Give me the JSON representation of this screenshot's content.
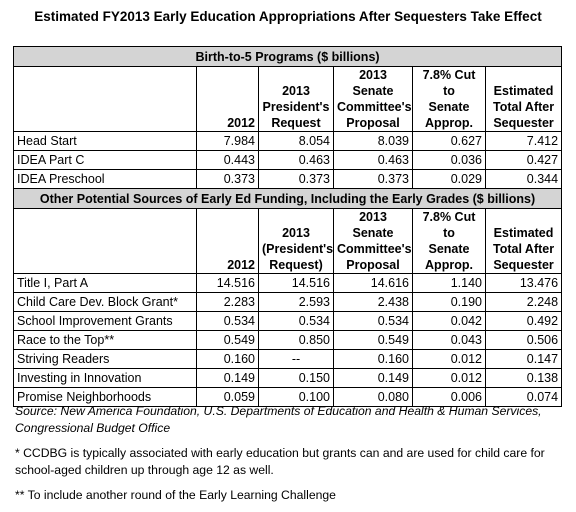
{
  "title": "Estimated FY2013 Early Education Appropriations After Sequesters Take Effect",
  "section1": {
    "header": "Birth-to-5 Programs ($ billions)",
    "columns": [
      "2012",
      "2013 President's Request",
      "2013 Senate Committee's Proposal",
      "7.8% Cut to Senate Approp.",
      "Estimated Total After Sequester"
    ],
    "col_lines": [
      [
        "2012"
      ],
      [
        "2013",
        "President's",
        "Request"
      ],
      [
        "2013 Senate",
        "Committee's",
        "Proposal"
      ],
      [
        "7.8% Cut to",
        "Senate",
        "Approp."
      ],
      [
        "Estimated",
        "Total After",
        "Sequester"
      ]
    ],
    "rows": [
      {
        "name": "Head Start",
        "v": [
          "7.984",
          "8.054",
          "8.039",
          "0.627",
          "7.412"
        ]
      },
      {
        "name": "IDEA Part C",
        "v": [
          "0.443",
          "0.463",
          "0.463",
          "0.036",
          "0.427"
        ]
      },
      {
        "name": "IDEA Preschool",
        "v": [
          "0.373",
          "0.373",
          "0.373",
          "0.029",
          "0.344"
        ]
      }
    ]
  },
  "section2": {
    "header": "Other Potential Sources of Early Ed Funding, Including the Early Grades ($ billions)",
    "col_lines": [
      [
        "2012"
      ],
      [
        "2013",
        "(President's",
        "Request)"
      ],
      [
        "2013 Senate",
        "Committee's",
        "Proposal"
      ],
      [
        "7.8% Cut to",
        "Senate",
        "Approp."
      ],
      [
        "Estimated",
        "Total After",
        "Sequester"
      ]
    ],
    "rows": [
      {
        "name": "Title I, Part A",
        "v": [
          "14.516",
          "14.516",
          "14.616",
          "1.140",
          "13.476"
        ]
      },
      {
        "name": "Child Care Dev. Block Grant*",
        "v": [
          "2.283",
          "2.593",
          "2.438",
          "0.190",
          "2.248"
        ]
      },
      {
        "name": "School Improvement Grants",
        "v": [
          "0.534",
          "0.534",
          "0.534",
          "0.042",
          "0.492"
        ]
      },
      {
        "name": "Race to the Top**",
        "v": [
          "0.549",
          "0.850",
          "0.549",
          "0.043",
          "0.506"
        ]
      },
      {
        "name": "Striving Readers",
        "v": [
          "0.160",
          "--",
          "0.160",
          "0.012",
          "0.147"
        ]
      },
      {
        "name": "Investing in Innovation",
        "v": [
          "0.149",
          "0.150",
          "0.149",
          "0.012",
          "0.138"
        ]
      },
      {
        "name": "Promise Neighborhoods",
        "v": [
          "0.059",
          "0.100",
          "0.080",
          "0.006",
          "0.074"
        ]
      }
    ]
  },
  "source": "Source: New America Foundation, U.S. Departments of Education and Health & Human Services, Congressional Budget Office",
  "note1": "* CCDBG is typically associated with early education but grants can and are used for child care for school-aged children up through age 12 as well.",
  "note2": "** To include another round of the Early Learning Challenge"
}
